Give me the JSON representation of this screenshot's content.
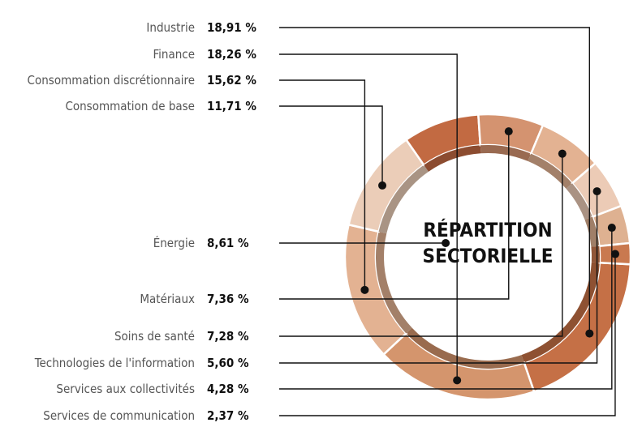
{
  "chart_data": {
    "type": "pie",
    "title": "RÉPARTITION SECTORIELLE",
    "title_lines": [
      "RÉPARTITION",
      "SECTORIELLE"
    ],
    "categories": [
      "Industrie",
      "Finance",
      "Consommation discrétionnaire",
      "Consommation de base",
      "Énergie",
      "Matériaux",
      "Soins de santé",
      "Technologies de l'information",
      "Services aux collectivités",
      "Services de communication"
    ],
    "values": [
      18.91,
      18.26,
      15.62,
      11.71,
      8.61,
      7.36,
      7.28,
      5.6,
      4.28,
      2.37
    ],
    "value_labels": [
      "18,91 %",
      "18,26 %",
      "15,62 %",
      "11,71 %",
      "8,61 %",
      "7,36 %",
      "7,28 %",
      "5,60 %",
      "4,28 %",
      "2,37 %"
    ],
    "colors": [
      "#c57046",
      "#d4956d",
      "#e3b292",
      "#ebcdb8",
      "#c26a42",
      "#d49370",
      "#e3b292",
      "#eccbb6",
      "#deb191",
      "#c9794f"
    ],
    "legend": "labels-left-with-leader-lines"
  }
}
